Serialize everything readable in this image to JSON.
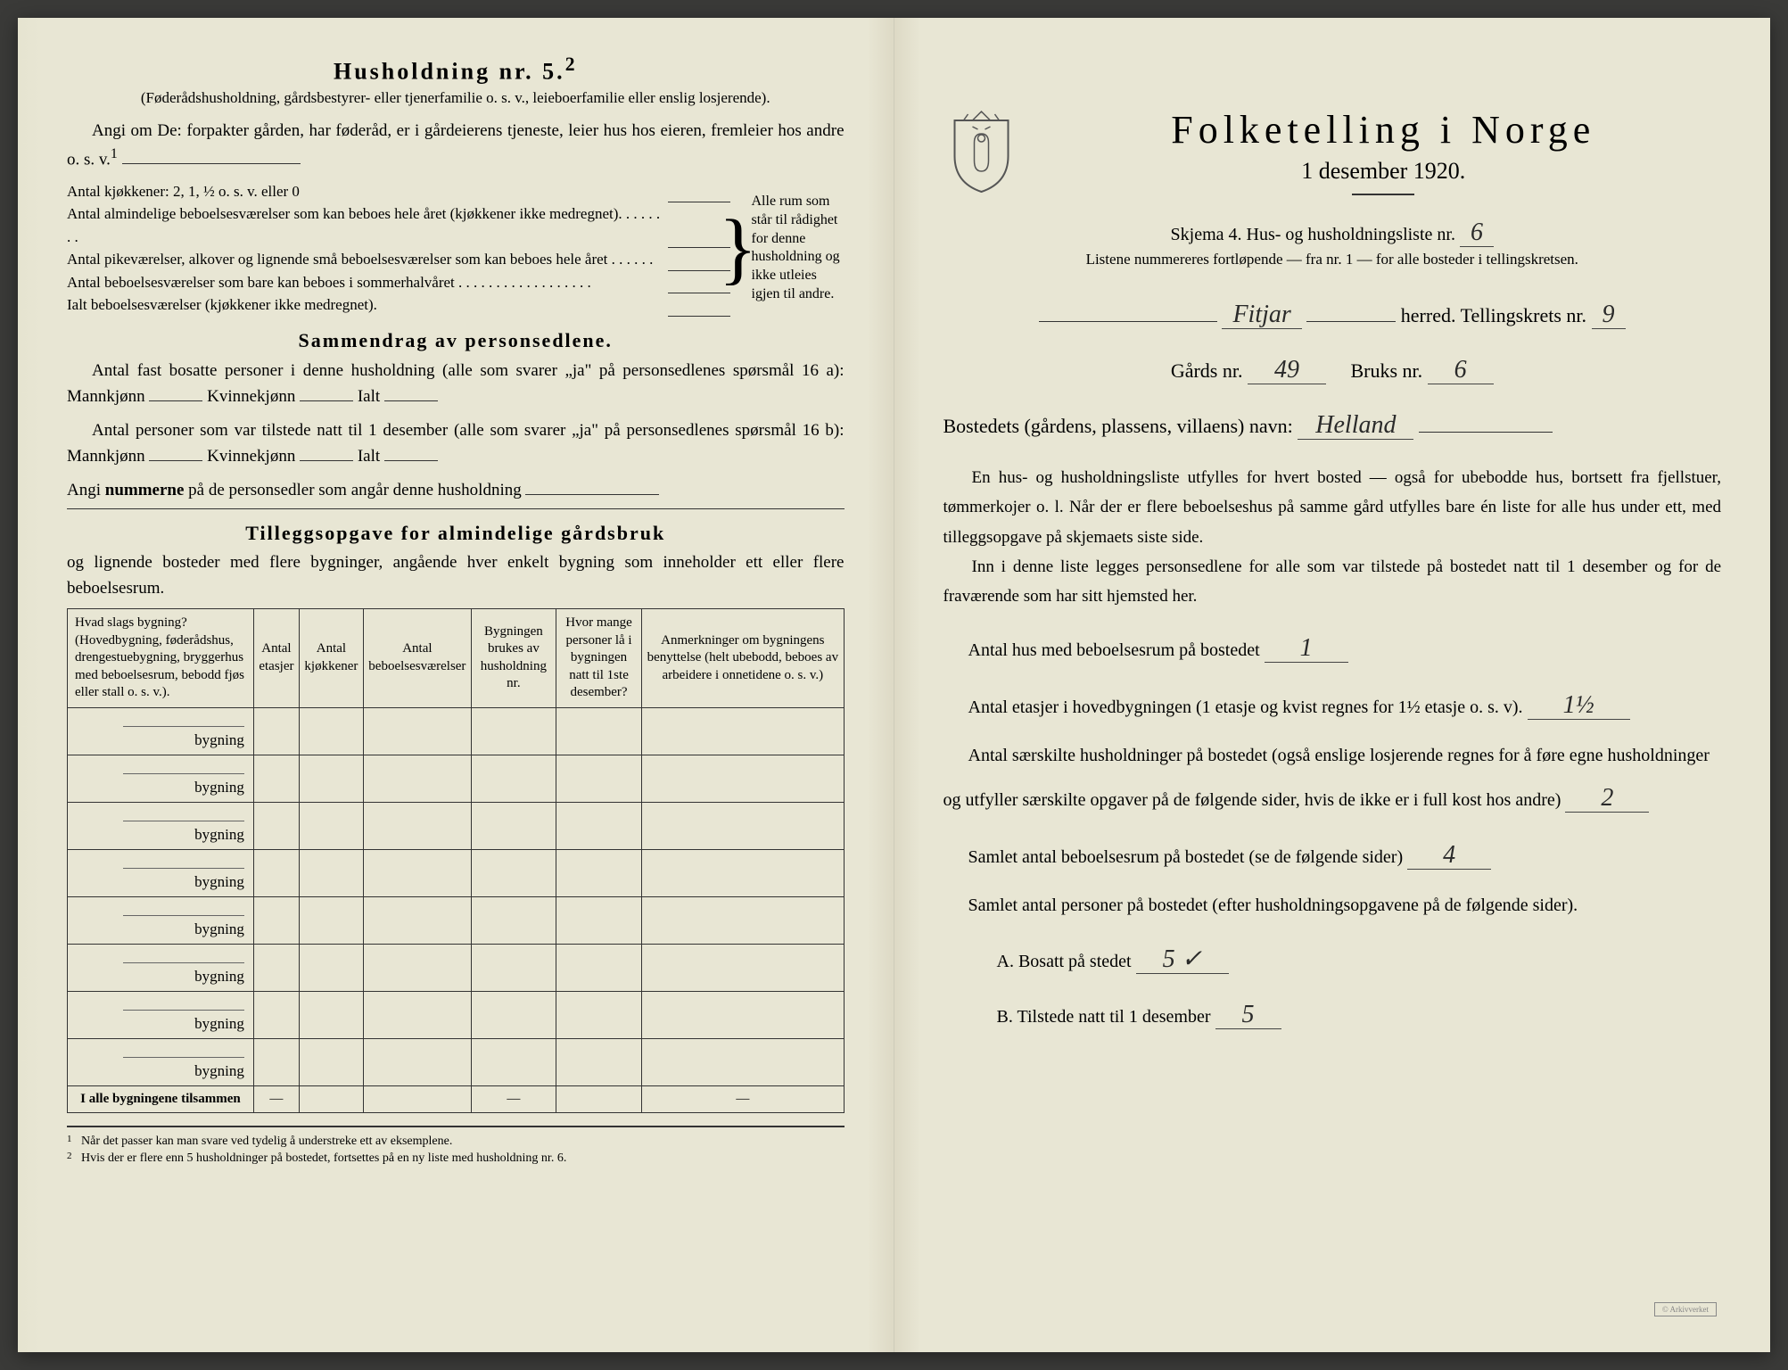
{
  "left": {
    "heading": "Husholdning nr. 5.",
    "heading_sup": "2",
    "intro1": "(Føderådshusholdning, gårdsbestyrer- eller tjenerfamilie o. s. v., leieboerfamilie eller enslig losjerende).",
    "intro2": "Angi om De:  forpakter gården, har føderåd, er i gårdeierens tjeneste, leier hus hos eieren, fremleier hos andre o. s. v.",
    "intro2_sup": "1",
    "kitchens_label": "Antal kjøkkener: 2, 1, ½ o. s. v. eller 0",
    "brace_rows": [
      "Antal almindelige beboelsesværelser som kan beboes hele året (kjøkkener ikke medregnet). . . . . . . .",
      "Antal pikeværelser, alkover og lignende små beboelsesværelser som kan beboes hele året . . . . . .",
      "Antal beboelsesværelser som bare kan beboes i sommerhalvåret . . . . . . . . . . . . . . . . . ."
    ],
    "brace_right": "Alle rum som står til rådighet for denne husholdning og ikke utleies igjen til andre.",
    "ialt_label": "Ialt beboelsesværelser   (kjøkkener ikke medregnet).",
    "sammendrag_h": "Sammendrag av personsedlene.",
    "sammendrag1": "Antal fast bosatte personer i denne husholdning (alle som svarer „ja\" på personsedlenes spørsmål 16 a): Mannkjønn",
    "kvinne": "Kvinnekjønn",
    "ialt": "Ialt",
    "sammendrag2": "Antal personer som var tilstede natt til 1 desember (alle som svarer „ja\" på personsedlenes spørsmål 16 b): Mannkjønn",
    "angi": "Angi ",
    "angi_bold": "nummerne",
    "angi2": " på de personsedler som angår denne husholdning",
    "tillegg_h": "Tilleggsopgave for almindelige gårdsbruk",
    "tillegg_sub": "og lignende bosteder med flere bygninger, angående hver enkelt bygning som inneholder ett eller flere beboelsesrum.",
    "table": {
      "headers": [
        "Hvad slags bygning?\n(Hovedbygning, føderådshus, drengestuebygning, bryggerhus med beboelsesrum, bebodd fjøs eller stall o. s. v.).",
        "Antal etasjer",
        "Antal kjøkkener",
        "Antal beboelsesværelser",
        "Bygningen brukes av husholdning nr.",
        "Hvor mange personer lå i bygningen natt til 1ste desember?",
        "Anmerkninger om bygningens benyttelse (helt ubebodd, beboes av arbeidere i onnetidene o. s. v.)"
      ],
      "row_label": "bygning",
      "row_count": 8,
      "footer": "I alle bygningene tilsammen"
    },
    "footnotes": [
      "Når det passer kan man svare ved tydelig å understreke ett av eksemplene.",
      "Hvis der er flere enn 5 husholdninger på bostedet, fortsettes på en ny liste med husholdning nr. 6."
    ]
  },
  "right": {
    "title": "Folketelling  i  Norge",
    "date": "1 desember 1920.",
    "skjema_pre": "Skjema 4.   Hus- og husholdningsliste nr.",
    "skjema_val": "6",
    "listene": "Listene nummereres fortløpende — fra nr. 1 — for alle bosteder i tellingskretsen.",
    "herred_val": "Fitjar",
    "herred_lbl": "herred.   Tellingskrets nr.",
    "krets_val": "9",
    "gards_lbl": "Gårds nr.",
    "gards_val": "49",
    "bruks_lbl": "Bruks nr.",
    "bruks_val": "6",
    "bosted_lbl": "Bostedets (gårdens, plassens, villaens) navn:",
    "bosted_val": "Helland",
    "body1": "En hus- og husholdningsliste utfylles for hvert bosted — også for ubebodde hus, bortsett fra fjellstuer, tømmerkojer o. l.  Når der er flere beboelseshus på samme gård utfylles bare én liste for alle hus under ett, med tilleggsopgave på skjemaets siste side.",
    "body2": "Inn i denne liste legges personsedlene for alle som var tilstede på bostedet natt til 1 desember og for de fraværende som har sitt hjemsted her.",
    "q1": "Antal hus med beboelsesrum på bostedet",
    "q1_val": "1",
    "q2a": "Antal etasjer i hovedbygningen (1 etasje og kvist regnes for 1½ etasje o. s. v).",
    "q2_val": "1½",
    "q3": "Antal særskilte husholdninger på bostedet (også enslige losjerende regnes for å føre egne husholdninger og utfyller særskilte opgaver på de følgende sider, hvis de ikke er i full kost hos andre)",
    "q3_val": "2",
    "q4": "Samlet antal beboelsesrum på bostedet (se de følgende sider)",
    "q4_val": "4",
    "q5": "Samlet antal personer på bostedet (efter husholdningsopgavene på de følgende sider).",
    "qA": "A.   Bosatt på stedet",
    "qA_val": "5 ✓",
    "qB": "B.   Tilstede natt til 1 desember",
    "qB_val": "5",
    "stamp": "© Arkivverket"
  }
}
